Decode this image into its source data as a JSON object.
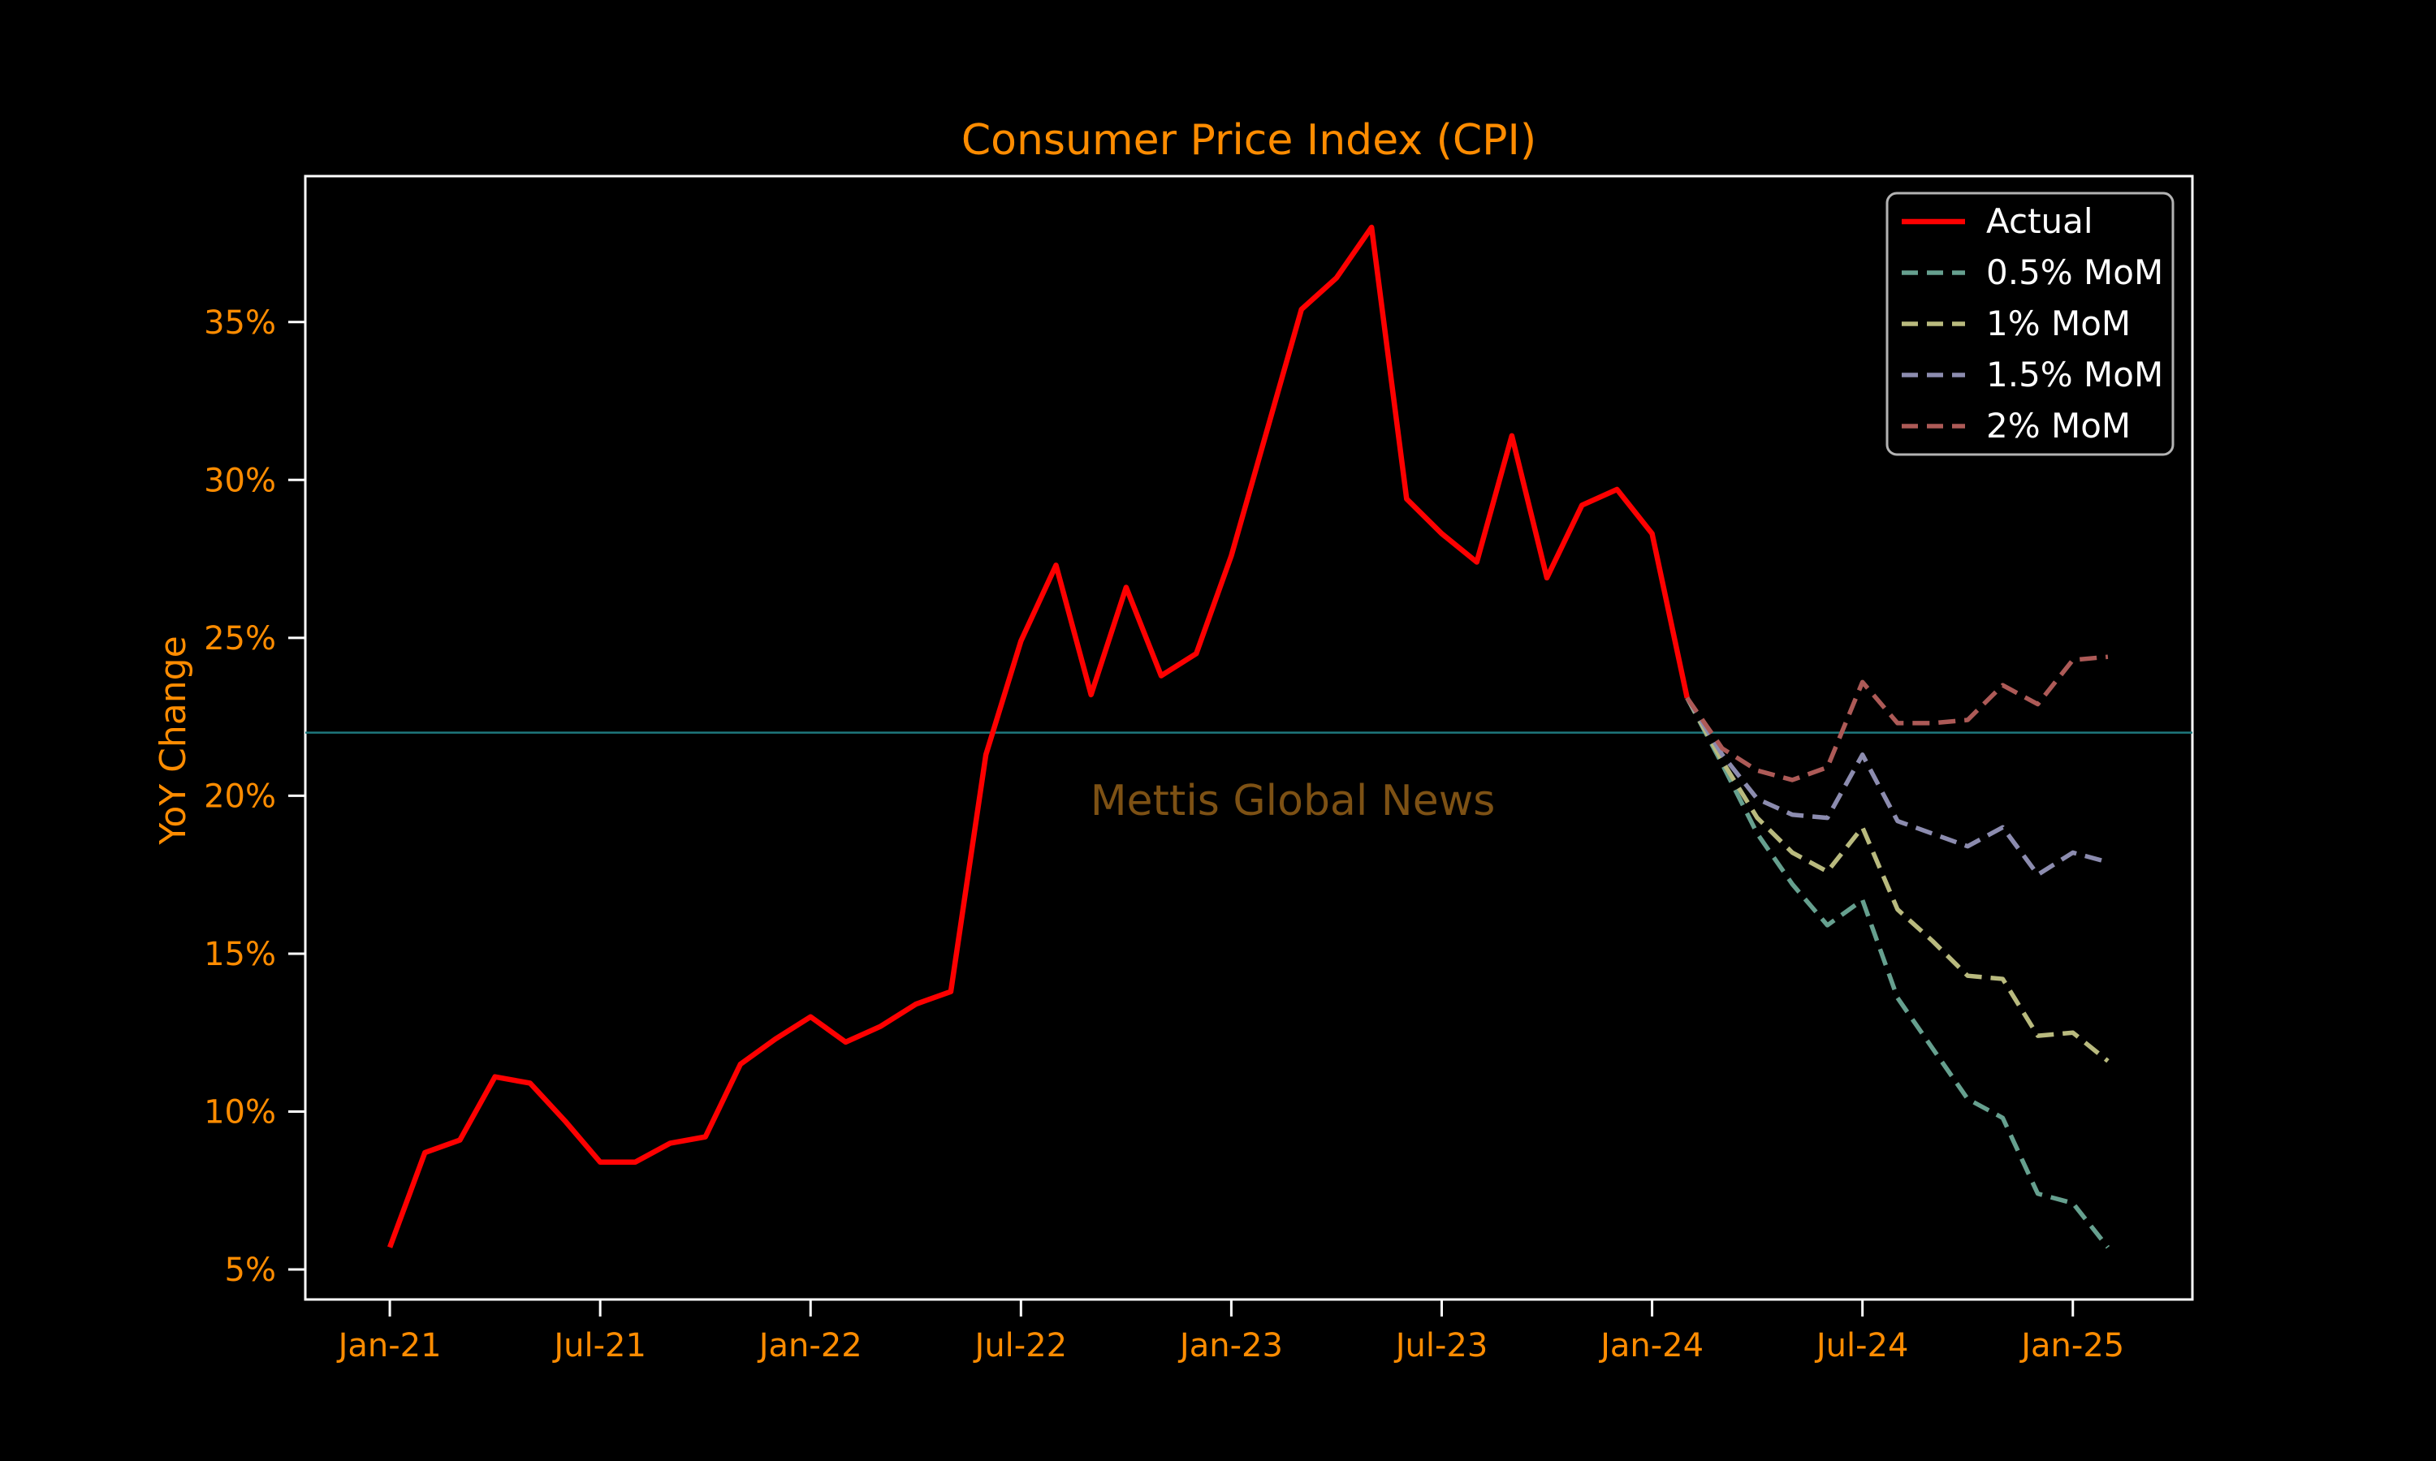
{
  "chart_data": {
    "type": "line",
    "title": "Consumer Price Index (CPI)",
    "ylabel": "YoY Change",
    "xlabel": "",
    "watermark": "Mettis Global News",
    "background_color": "#000000",
    "label_color": "#ff8c00",
    "axis_color": "#ffffff",
    "watermark_color": "#7d5114",
    "grid": false,
    "legend_position": "upper right",
    "legend_border_color": "#b3b3b3",
    "legend_text_color": "#ffffff",
    "x_unit": "months since Jan-2021",
    "x_tick_labels": [
      "Jan-21",
      "Jul-21",
      "Jan-22",
      "Jul-22",
      "Jan-23",
      "Jul-23",
      "Jan-24",
      "Jul-24",
      "Jan-25"
    ],
    "x_tick_months": [
      0,
      6,
      12,
      18,
      24,
      30,
      36,
      42,
      48
    ],
    "y_tick_values": [
      5,
      10,
      15,
      20,
      25,
      30,
      35
    ],
    "y_tick_labels": [
      "5%",
      "10%",
      "15%",
      "20%",
      "25%",
      "30%",
      "35%"
    ],
    "xlim": [
      -2.41,
      51.41
    ],
    "ylim": [
      4.05,
      39.62
    ],
    "threshold_line": {
      "value": 22,
      "color": "#1e787d"
    },
    "series": [
      {
        "name": "Actual",
        "color": "#fe0000",
        "style": "solid",
        "start_month": 0,
        "values": [
          5.7,
          8.7,
          9.1,
          11.1,
          10.9,
          9.7,
          8.4,
          8.4,
          9.0,
          9.2,
          11.5,
          12.3,
          13.0,
          12.2,
          12.7,
          13.4,
          13.8,
          21.3,
          24.9,
          27.3,
          23.2,
          26.6,
          23.8,
          24.5,
          27.6,
          31.5,
          35.4,
          36.4,
          38.0,
          29.4,
          28.3,
          27.4,
          31.4,
          26.9,
          29.2,
          29.7,
          28.3,
          23.1
        ]
      },
      {
        "name": "0.5% MoM",
        "color": "#66a08f",
        "style": "dashed",
        "start_month": 37,
        "values": [
          23.1,
          21.0,
          18.8,
          17.2,
          15.9,
          16.7,
          13.6,
          12.0,
          10.4,
          9.8,
          7.4,
          7.1,
          5.7
        ]
      },
      {
        "name": "1% MoM",
        "color": "#b9ba7e",
        "style": "dashed",
        "start_month": 37,
        "values": [
          23.1,
          21.1,
          19.3,
          18.2,
          17.6,
          19.0,
          16.4,
          15.4,
          14.3,
          14.2,
          12.4,
          12.5,
          11.6
        ]
      },
      {
        "name": "1.5% MoM",
        "color": "#8c8caf",
        "style": "dashed",
        "start_month": 37,
        "values": [
          23.1,
          21.3,
          19.9,
          19.4,
          19.3,
          21.3,
          19.2,
          18.8,
          18.4,
          19.0,
          17.5,
          18.2,
          17.9
        ]
      },
      {
        "name": "2% MoM",
        "color": "#ad5a57",
        "style": "dashed",
        "start_month": 37,
        "values": [
          23.1,
          21.5,
          20.8,
          20.5,
          20.9,
          23.6,
          22.3,
          22.3,
          22.4,
          23.5,
          22.9,
          24.3,
          24.4
        ]
      }
    ],
    "legend_entries": [
      "Actual",
      "0.5% MoM",
      "1% MoM",
      "1.5% MoM",
      "2% MoM"
    ]
  }
}
